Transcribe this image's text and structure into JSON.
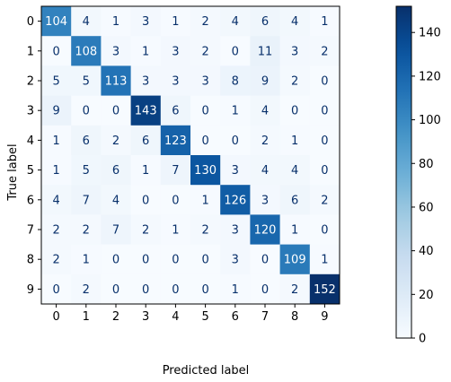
{
  "chart_data": {
    "type": "heatmap",
    "title": "",
    "xlabel": "Predicted label",
    "ylabel": "True label",
    "x_categories": [
      "0",
      "1",
      "2",
      "3",
      "4",
      "5",
      "6",
      "7",
      "8",
      "9"
    ],
    "y_categories": [
      "0",
      "1",
      "2",
      "3",
      "4",
      "5",
      "6",
      "7",
      "8",
      "9"
    ],
    "matrix": [
      [
        104,
        4,
        1,
        3,
        1,
        2,
        4,
        6,
        4,
        1
      ],
      [
        0,
        108,
        3,
        1,
        3,
        2,
        0,
        11,
        3,
        2
      ],
      [
        5,
        5,
        113,
        3,
        3,
        3,
        8,
        9,
        2,
        0
      ],
      [
        9,
        0,
        0,
        143,
        6,
        0,
        1,
        4,
        0,
        0
      ],
      [
        1,
        6,
        2,
        6,
        123,
        0,
        0,
        2,
        1,
        0
      ],
      [
        1,
        5,
        6,
        1,
        7,
        130,
        3,
        4,
        4,
        0
      ],
      [
        4,
        7,
        4,
        0,
        0,
        1,
        126,
        3,
        6,
        2
      ],
      [
        2,
        2,
        7,
        2,
        1,
        2,
        3,
        120,
        1,
        0
      ],
      [
        2,
        1,
        0,
        0,
        0,
        0,
        3,
        0,
        109,
        1
      ],
      [
        0,
        2,
        0,
        0,
        0,
        0,
        1,
        0,
        2,
        152
      ]
    ],
    "colormap": "Blues",
    "colorbar": {
      "range": [
        0,
        152
      ],
      "ticks": [
        0,
        20,
        40,
        60,
        80,
        100,
        120,
        140
      ]
    },
    "grid": false,
    "legend": "colorbar-right"
  }
}
